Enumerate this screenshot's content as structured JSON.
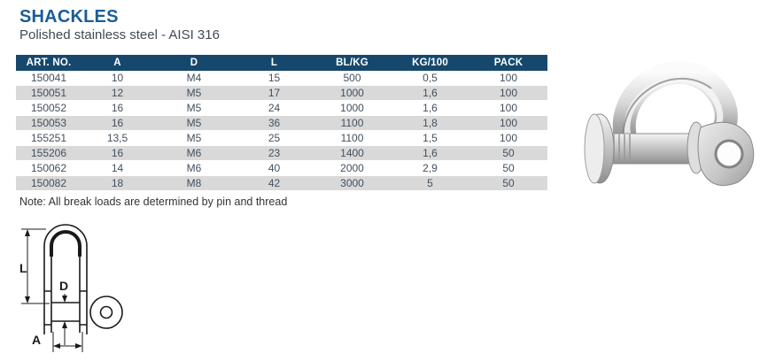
{
  "header": {
    "title": "SHACKLES",
    "subtitle": "Polished stainless steel - AISI 316"
  },
  "table": {
    "columns": [
      "ART. NO.",
      "A",
      "D",
      "L",
      "BL/KG",
      "KG/100",
      "PACK"
    ],
    "rows": [
      [
        "150041",
        "10",
        "M4",
        "15",
        "500",
        "0,5",
        "100"
      ],
      [
        "150051",
        "12",
        "M5",
        "17",
        "1000",
        "1,6",
        "100"
      ],
      [
        "150052",
        "16",
        "M5",
        "24",
        "1000",
        "1,6",
        "100"
      ],
      [
        "150053",
        "16",
        "M5",
        "36",
        "1100",
        "1,8",
        "100"
      ],
      [
        "155251",
        "13,5",
        "M5",
        "25",
        "1100",
        "1,5",
        "100"
      ],
      [
        "155206",
        "16",
        "M6",
        "23",
        "1400",
        "1,6",
        "50"
      ],
      [
        "150062",
        "14",
        "M6",
        "40",
        "2000",
        "2,9",
        "50"
      ],
      [
        "150082",
        "18",
        "M8",
        "42",
        "3000",
        "5",
        "50"
      ]
    ]
  },
  "note": {
    "text": "Note: All break loads are determined by pin and thread"
  },
  "diagram": {
    "label_length": "L",
    "label_pin_diameter": "D",
    "label_inside_width": "A"
  },
  "images": {
    "product_photo": "stainless-steel-d-shackle-photo",
    "technical_drawing": "shackle-dimension-line-drawing"
  },
  "colors": {
    "title_color": "#1a5d97",
    "subtitle_color": "#3f4a54",
    "header_bg": "#16486e",
    "header_text": "#ffffff",
    "row_alt_bg": "#d9d9d9",
    "body_text": "#42505e",
    "note_color": "#333333"
  }
}
